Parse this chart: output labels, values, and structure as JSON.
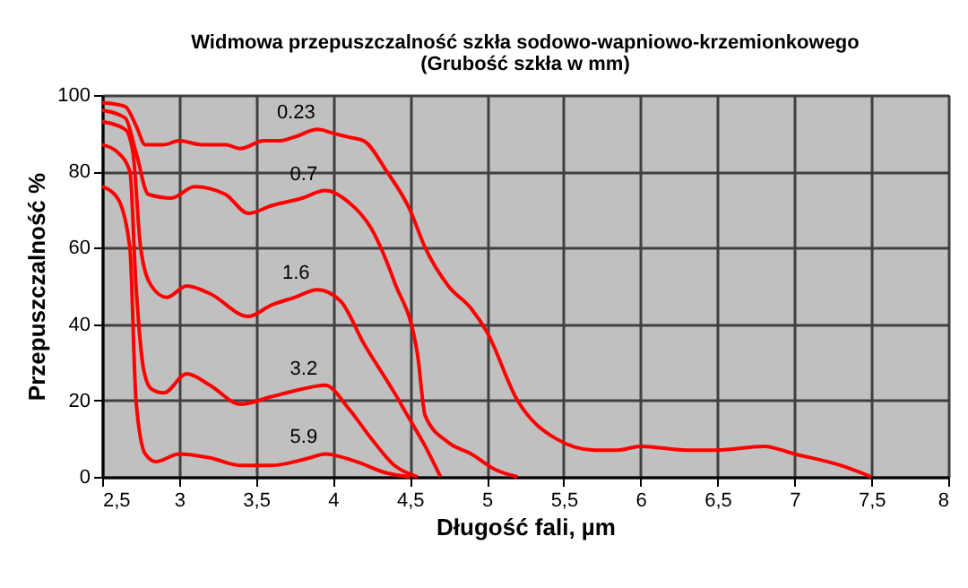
{
  "chart_data": {
    "type": "line",
    "title": "Widmowa przepuszczalność szkła sodowo-wapniowo-krzemionkowego",
    "subtitle": "(Grubość  szkła w mm)",
    "xlabel": "Długość  fali, µm",
    "ylabel": "Przepuszczalność  %",
    "xlim": [
      2.5,
      8
    ],
    "xticks": [
      {
        "value": 2.5,
        "label": "2,5"
      },
      3,
      {
        "value": 3.5,
        "label": "3,5"
      },
      4,
      {
        "value": 4.5,
        "label": "4,5"
      },
      5,
      {
        "value": 5.5,
        "label": "5,5"
      },
      6,
      {
        "value": 6.5,
        "label": "6,5"
      },
      7,
      {
        "value": 7.5,
        "label": "7,5"
      },
      8
    ],
    "ylim": [
      0,
      100
    ],
    "yticks": [
      0,
      20,
      40,
      60,
      80,
      100
    ],
    "grid": true,
    "legend": false,
    "marker": "none",
    "line_style": "solid",
    "series": [
      {
        "name": "0.23",
        "color": "#ff0000",
        "x": [
          2.5,
          2.65,
          2.72,
          2.78,
          2.9,
          3.0,
          3.15,
          3.3,
          3.4,
          3.55,
          3.65,
          3.75,
          3.9,
          4.0,
          4.1,
          4.2,
          4.35,
          4.5,
          4.6,
          4.75,
          4.9,
          5.0,
          5.2,
          5.45,
          5.7,
          5.85,
          6.0,
          6.3,
          6.5,
          6.8,
          7.0,
          7.3,
          7.5
        ],
        "values": [
          98,
          97,
          92,
          87,
          87,
          88,
          87,
          87,
          86,
          88,
          88,
          89,
          91,
          90,
          89,
          88,
          80,
          70,
          60,
          50,
          44,
          38,
          20,
          10,
          7,
          7,
          8,
          7,
          7,
          8,
          6,
          3,
          0
        ]
      },
      {
        "name": "0.7",
        "color": "#ff0000",
        "x": [
          2.5,
          2.65,
          2.72,
          2.8,
          2.95,
          3.1,
          3.3,
          3.45,
          3.6,
          3.8,
          3.95,
          4.1,
          4.25,
          4.4,
          4.55,
          4.6,
          4.75,
          4.9,
          5.05,
          5.2
        ],
        "values": [
          96,
          94,
          85,
          74,
          73,
          76,
          74,
          69,
          71,
          73,
          75,
          72,
          65,
          51,
          32,
          16,
          9,
          6,
          2,
          0
        ]
      },
      {
        "name": "1.6",
        "color": "#ff0000",
        "x": [
          2.5,
          2.65,
          2.7,
          2.75,
          2.82,
          2.92,
          3.05,
          3.2,
          3.45,
          3.6,
          3.75,
          3.9,
          4.05,
          4.2,
          4.4,
          4.5,
          4.6,
          4.7
        ],
        "values": [
          93,
          91,
          85,
          60,
          50,
          47,
          50,
          48,
          42,
          45,
          47,
          49,
          46,
          35,
          22,
          15,
          8,
          0
        ]
      },
      {
        "name": "3.2",
        "color": "#ff0000",
        "x": [
          2.5,
          2.6,
          2.68,
          2.72,
          2.77,
          2.82,
          2.9,
          3.05,
          3.2,
          3.4,
          3.6,
          3.8,
          3.95,
          4.1,
          4.25,
          4.4,
          4.55
        ],
        "values": [
          87,
          85,
          80,
          50,
          28,
          23,
          22,
          27,
          24,
          19,
          21,
          23,
          24,
          18,
          10,
          3,
          0
        ]
      },
      {
        "name": "5.9",
        "color": "#ff0000",
        "x": [
          2.5,
          2.6,
          2.68,
          2.72,
          2.78,
          2.85,
          3.0,
          3.2,
          3.4,
          3.6,
          3.85,
          3.95,
          4.15,
          4.35,
          4.5
        ],
        "values": [
          76,
          73,
          60,
          20,
          6,
          4,
          6,
          5,
          3,
          3,
          5,
          6,
          4,
          1,
          0
        ]
      }
    ]
  }
}
